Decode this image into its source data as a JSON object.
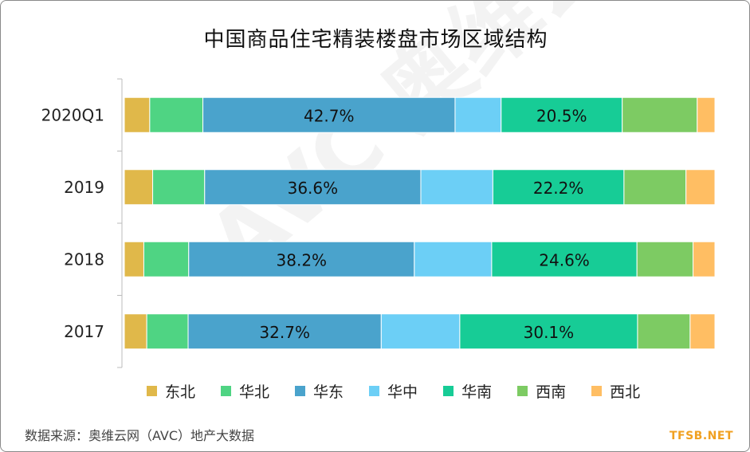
{
  "title": "中国商品住宅精装楼盘市场区域结构",
  "source": "数据来源：奥维云网（AVC）地产大数据",
  "logo": "TFSB.NET",
  "watermark": "AVC 奥维云网",
  "chart_data": {
    "type": "bar",
    "orientation": "horizontal",
    "stacked": true,
    "percent": true,
    "categories": [
      "2020Q1",
      "2019",
      "2018",
      "2017"
    ],
    "series": [
      {
        "name": "东北",
        "color": "#e0b84a",
        "values": [
          4.3,
          4.8,
          3.3,
          3.8
        ]
      },
      {
        "name": "华北",
        "color": "#4fd483",
        "values": [
          9.0,
          8.8,
          7.6,
          7.0
        ]
      },
      {
        "name": "华东",
        "color": "#4aa3cc",
        "values": [
          42.7,
          36.6,
          38.2,
          32.7
        ]
      },
      {
        "name": "华中",
        "color": "#6ccff6",
        "values": [
          7.8,
          12.2,
          13.1,
          13.3
        ]
      },
      {
        "name": "华南",
        "color": "#17cc96",
        "values": [
          20.5,
          22.2,
          24.6,
          30.1
        ]
      },
      {
        "name": "西南",
        "color": "#7dcb63",
        "values": [
          12.7,
          10.5,
          9.5,
          8.9
        ]
      },
      {
        "name": "西北",
        "color": "#ffbe63",
        "values": [
          3.0,
          4.9,
          3.7,
          4.2
        ]
      }
    ],
    "data_labels": [
      {
        "category": "2020Q1",
        "series": "华东",
        "text": "42.7%"
      },
      {
        "category": "2020Q1",
        "series": "华南",
        "text": "20.5%"
      },
      {
        "category": "2019",
        "series": "华东",
        "text": "36.6%"
      },
      {
        "category": "2019",
        "series": "华南",
        "text": "22.2%"
      },
      {
        "category": "2018",
        "series": "华东",
        "text": "38.2%"
      },
      {
        "category": "2018",
        "series": "华南",
        "text": "24.6%"
      },
      {
        "category": "2017",
        "series": "华东",
        "text": "32.7%"
      },
      {
        "category": "2017",
        "series": "华南",
        "text": "30.1%"
      }
    ],
    "xlim": [
      0,
      100
    ],
    "legend_position": "bottom",
    "grid": false
  }
}
